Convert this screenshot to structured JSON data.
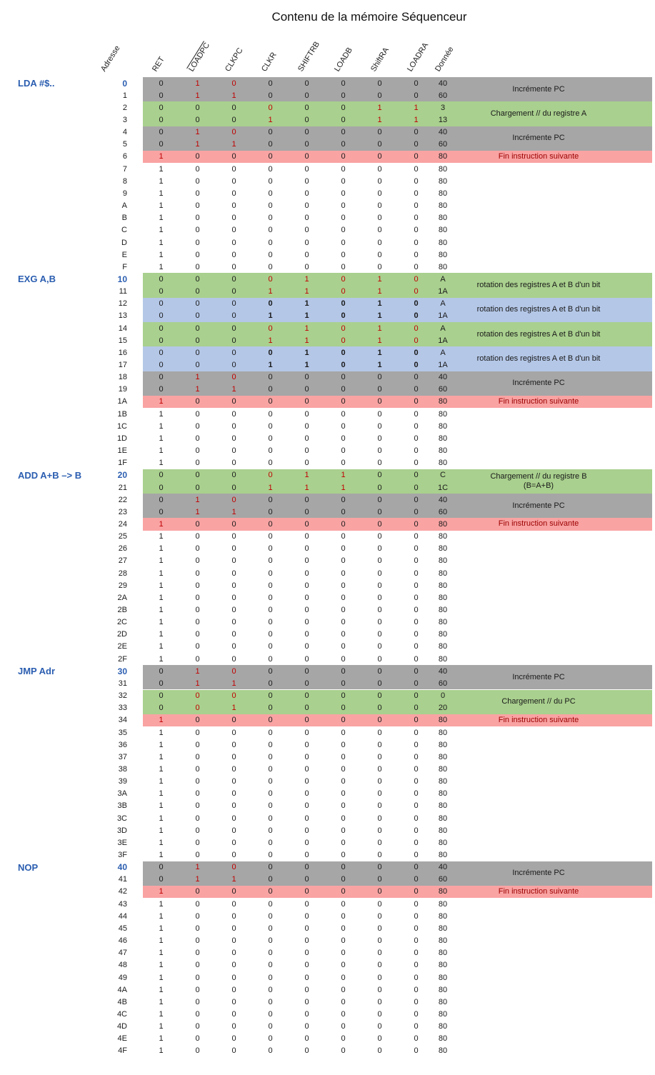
{
  "title": "Contenu de la mémoire Séquenceur",
  "colors": {
    "gray": "#a6a6a6",
    "green": "#a9d08e",
    "blue": "#b4c7e7",
    "pink": "#f9a3a3",
    "red_digit": "#c00000",
    "red_annotation": "#9c0000",
    "section_blue": "#2a5db0"
  },
  "columns": [
    {
      "label": "Adresse",
      "overline": false
    },
    {
      "label": "RET",
      "overline": false
    },
    {
      "label": "LOADPC",
      "overline": true
    },
    {
      "label": "CLKPC",
      "overline": false
    },
    {
      "label": "CLKR",
      "overline": false
    },
    {
      "label": "SHIFTRB",
      "overline": false
    },
    {
      "label": "LOADB",
      "overline": false
    },
    {
      "label": "ShiftRA",
      "overline": false
    },
    {
      "label": "LOADRA",
      "overline": false
    },
    {
      "label": "Donnée",
      "overline": false
    }
  ],
  "sections": [
    {
      "label": "LDA #$..",
      "start_addr": "0"
    },
    {
      "label": "EXG A,B",
      "start_addr": "10"
    },
    {
      "label": "ADD A+B –> B",
      "start_addr": "20"
    },
    {
      "label": "JMP Adr",
      "start_addr": "30"
    },
    {
      "label": "NOP",
      "start_addr": "40"
    }
  ],
  "annotations": [
    {
      "addr": "0",
      "span": 2,
      "lines": [
        "Incrémente PC"
      ],
      "red": false
    },
    {
      "addr": "2",
      "span": 2,
      "lines": [
        "Chargement // du registre A"
      ],
      "red": false
    },
    {
      "addr": "4",
      "span": 2,
      "lines": [
        "Incrémente PC"
      ],
      "red": false
    },
    {
      "addr": "6",
      "span": 1,
      "lines": [
        "Fin instruction suivante"
      ],
      "red": true
    },
    {
      "addr": "10",
      "span": 2,
      "lines": [
        "rotation des registres A et B d'un bit"
      ],
      "red": false
    },
    {
      "addr": "12",
      "span": 2,
      "lines": [
        "rotation des registres A et B d'un bit"
      ],
      "red": false
    },
    {
      "addr": "14",
      "span": 2,
      "lines": [
        "rotation des registres A et B d'un bit"
      ],
      "red": false
    },
    {
      "addr": "16",
      "span": 2,
      "lines": [
        "rotation des registres A et B d'un bit"
      ],
      "red": false
    },
    {
      "addr": "18",
      "span": 2,
      "lines": [
        "Incrémente PC"
      ],
      "red": false
    },
    {
      "addr": "1A",
      "span": 1,
      "lines": [
        "Fin instruction suivante"
      ],
      "red": true
    },
    {
      "addr": "20",
      "span": 2,
      "lines": [
        "Chargement // du registre B",
        "(B=A+B)"
      ],
      "red": false
    },
    {
      "addr": "22",
      "span": 2,
      "lines": [
        "Incrémente PC"
      ],
      "red": false
    },
    {
      "addr": "24",
      "span": 1,
      "lines": [
        "Fin instruction suivante"
      ],
      "red": true
    },
    {
      "addr": "30",
      "span": 2,
      "lines": [
        "Incrémente PC"
      ],
      "red": false
    },
    {
      "addr": "32",
      "span": 2,
      "lines": [
        "Chargement // du PC"
      ],
      "red": false
    },
    {
      "addr": "34",
      "span": 1,
      "lines": [
        "Fin instruction suivante"
      ],
      "red": true
    },
    {
      "addr": "40",
      "span": 2,
      "lines": [
        "Incrémente PC"
      ],
      "red": false
    },
    {
      "addr": "42",
      "span": 1,
      "lines": [
        "Fin instruction suivante"
      ],
      "red": true
    }
  ],
  "rows": [
    {
      "addr": "0",
      "section_start": true,
      "bg": "gray",
      "bits": "01000000",
      "red_bits": [
        1,
        2
      ],
      "donnee": "40"
    },
    {
      "addr": "1",
      "bg": "gray",
      "bits": "01100000",
      "red_bits": [
        1,
        2
      ],
      "donnee": "60"
    },
    {
      "addr": "2",
      "bg": "green",
      "bits": "00000011",
      "red_bits": [
        3,
        6,
        7
      ],
      "donnee": "3"
    },
    {
      "addr": "3",
      "bg": "green",
      "bits": "00010011",
      "red_bits": [
        3,
        6,
        7
      ],
      "donnee": "13"
    },
    {
      "addr": "4",
      "bg": "gray",
      "bits": "01000000",
      "red_bits": [
        1,
        2
      ],
      "donnee": "40"
    },
    {
      "addr": "5",
      "bg": "gray",
      "bits": "01100000",
      "red_bits": [
        1,
        2
      ],
      "donnee": "60"
    },
    {
      "addr": "6",
      "bg": "pink",
      "bits": "10000000",
      "red_bits": [
        0
      ],
      "donnee": "80"
    },
    {
      "addr": "7",
      "bg": "none",
      "bits": "10000000",
      "donnee": "80"
    },
    {
      "addr": "8",
      "bg": "none",
      "bits": "10000000",
      "donnee": "80"
    },
    {
      "addr": "9",
      "bg": "none",
      "bits": "10000000",
      "donnee": "80"
    },
    {
      "addr": "A",
      "bg": "none",
      "bits": "10000000",
      "donnee": "80"
    },
    {
      "addr": "B",
      "bg": "none",
      "bits": "10000000",
      "donnee": "80"
    },
    {
      "addr": "C",
      "bg": "none",
      "bits": "10000000",
      "donnee": "80"
    },
    {
      "addr": "D",
      "bg": "none",
      "bits": "10000000",
      "donnee": "80"
    },
    {
      "addr": "E",
      "bg": "none",
      "bits": "10000000",
      "donnee": "80"
    },
    {
      "addr": "F",
      "bg": "none",
      "bits": "10000000",
      "donnee": "80"
    },
    {
      "addr": "10",
      "section_start": true,
      "bg": "green",
      "bits": "00001010",
      "red_bits": [
        3,
        4,
        5,
        6,
        7
      ],
      "donnee": "A"
    },
    {
      "addr": "11",
      "bg": "green",
      "bits": "00011010",
      "red_bits": [
        3,
        4,
        5,
        6,
        7
      ],
      "donnee": "1A"
    },
    {
      "addr": "12",
      "bg": "blue",
      "bits": "00001010",
      "bold_bits": [
        3,
        4,
        5,
        6,
        7
      ],
      "donnee": "A"
    },
    {
      "addr": "13",
      "bg": "blue",
      "bits": "00011010",
      "bold_bits": [
        3,
        4,
        5,
        6,
        7
      ],
      "donnee": "1A"
    },
    {
      "addr": "14",
      "bg": "green",
      "bits": "00001010",
      "red_bits": [
        3,
        4,
        5,
        6,
        7
      ],
      "donnee": "A"
    },
    {
      "addr": "15",
      "bg": "green",
      "bits": "00011010",
      "red_bits": [
        3,
        4,
        5,
        6,
        7
      ],
      "donnee": "1A"
    },
    {
      "addr": "16",
      "bg": "blue",
      "bits": "00001010",
      "bold_bits": [
        3,
        4,
        5,
        6,
        7
      ],
      "donnee": "A"
    },
    {
      "addr": "17",
      "bg": "blue",
      "bits": "00011010",
      "bold_bits": [
        3,
        4,
        5,
        6,
        7
      ],
      "donnee": "1A"
    },
    {
      "addr": "18",
      "bg": "gray",
      "bits": "01000000",
      "red_bits": [
        1,
        2
      ],
      "donnee": "40"
    },
    {
      "addr": "19",
      "bg": "gray",
      "bits": "01100000",
      "red_bits": [
        1,
        2
      ],
      "donnee": "60"
    },
    {
      "addr": "1A",
      "bg": "pink",
      "bits": "10000000",
      "red_bits": [
        0
      ],
      "donnee": "80"
    },
    {
      "addr": "1B",
      "bg": "none",
      "bits": "10000000",
      "donnee": "80"
    },
    {
      "addr": "1C",
      "bg": "none",
      "bits": "10000000",
      "donnee": "80"
    },
    {
      "addr": "1D",
      "bg": "none",
      "bits": "10000000",
      "donnee": "80"
    },
    {
      "addr": "1E",
      "bg": "none",
      "bits": "10000000",
      "donnee": "80"
    },
    {
      "addr": "1F",
      "bg": "none",
      "bits": "10000000",
      "donnee": "80"
    },
    {
      "addr": "20",
      "section_start": true,
      "bg": "green",
      "bits": "00001100",
      "red_bits": [
        3,
        4,
        5
      ],
      "donnee": "C"
    },
    {
      "addr": "21",
      "bg": "green",
      "bits": "00011100",
      "red_bits": [
        3,
        4,
        5
      ],
      "donnee": "1C"
    },
    {
      "addr": "22",
      "bg": "gray",
      "bits": "01000000",
      "red_bits": [
        1,
        2
      ],
      "donnee": "40"
    },
    {
      "addr": "23",
      "bg": "gray",
      "bits": "01100000",
      "red_bits": [
        1,
        2
      ],
      "donnee": "60"
    },
    {
      "addr": "24",
      "bg": "pink",
      "bits": "10000000",
      "red_bits": [
        0
      ],
      "donnee": "80"
    },
    {
      "addr": "25",
      "bg": "none",
      "bits": "10000000",
      "donnee": "80"
    },
    {
      "addr": "26",
      "bg": "none",
      "bits": "10000000",
      "donnee": "80"
    },
    {
      "addr": "27",
      "bg": "none",
      "bits": "10000000",
      "donnee": "80"
    },
    {
      "addr": "28",
      "bg": "none",
      "bits": "10000000",
      "donnee": "80"
    },
    {
      "addr": "29",
      "bg": "none",
      "bits": "10000000",
      "donnee": "80"
    },
    {
      "addr": "2A",
      "bg": "none",
      "bits": "10000000",
      "donnee": "80"
    },
    {
      "addr": "2B",
      "bg": "none",
      "bits": "10000000",
      "donnee": "80"
    },
    {
      "addr": "2C",
      "bg": "none",
      "bits": "10000000",
      "donnee": "80"
    },
    {
      "addr": "2D",
      "bg": "none",
      "bits": "10000000",
      "donnee": "80"
    },
    {
      "addr": "2E",
      "bg": "none",
      "bits": "10000000",
      "donnee": "80"
    },
    {
      "addr": "2F",
      "bg": "none",
      "bits": "10000000",
      "donnee": "80"
    },
    {
      "addr": "30",
      "section_start": true,
      "bg": "gray",
      "bits": "01000000",
      "red_bits": [
        1,
        2
      ],
      "donnee": "40"
    },
    {
      "addr": "31",
      "bg": "gray",
      "bits": "01100000",
      "red_bits": [
        1,
        2
      ],
      "donnee": "60"
    },
    {
      "addr": "32",
      "bg": "green",
      "bits": "00000000",
      "red_bits": [
        1,
        2
      ],
      "donnee": "0"
    },
    {
      "addr": "33",
      "bg": "green",
      "bits": "00100000",
      "red_bits": [
        1,
        2
      ],
      "donnee": "20"
    },
    {
      "addr": "34",
      "bg": "pink",
      "bits": "10000000",
      "red_bits": [
        0
      ],
      "donnee": "80"
    },
    {
      "addr": "35",
      "bg": "none",
      "bits": "10000000",
      "donnee": "80"
    },
    {
      "addr": "36",
      "bg": "none",
      "bits": "10000000",
      "donnee": "80"
    },
    {
      "addr": "37",
      "bg": "none",
      "bits": "10000000",
      "donnee": "80"
    },
    {
      "addr": "38",
      "bg": "none",
      "bits": "10000000",
      "donnee": "80"
    },
    {
      "addr": "39",
      "bg": "none",
      "bits": "10000000",
      "donnee": "80"
    },
    {
      "addr": "3A",
      "bg": "none",
      "bits": "10000000",
      "donnee": "80"
    },
    {
      "addr": "3B",
      "bg": "none",
      "bits": "10000000",
      "donnee": "80"
    },
    {
      "addr": "3C",
      "bg": "none",
      "bits": "10000000",
      "donnee": "80"
    },
    {
      "addr": "3D",
      "bg": "none",
      "bits": "10000000",
      "donnee": "80"
    },
    {
      "addr": "3E",
      "bg": "none",
      "bits": "10000000",
      "donnee": "80"
    },
    {
      "addr": "3F",
      "bg": "none",
      "bits": "10000000",
      "donnee": "80"
    },
    {
      "addr": "40",
      "section_start": true,
      "bg": "gray",
      "bits": "01000000",
      "red_bits": [
        1,
        2
      ],
      "donnee": "40"
    },
    {
      "addr": "41",
      "bg": "gray",
      "bits": "01100000",
      "red_bits": [
        1,
        2
      ],
      "donnee": "60"
    },
    {
      "addr": "42",
      "bg": "pink",
      "bits": "10000000",
      "red_bits": [
        0
      ],
      "donnee": "80"
    },
    {
      "addr": "43",
      "bg": "none",
      "bits": "10000000",
      "donnee": "80"
    },
    {
      "addr": "44",
      "bg": "none",
      "bits": "10000000",
      "donnee": "80"
    },
    {
      "addr": "45",
      "bg": "none",
      "bits": "10000000",
      "donnee": "80"
    },
    {
      "addr": "46",
      "bg": "none",
      "bits": "10000000",
      "donnee": "80"
    },
    {
      "addr": "47",
      "bg": "none",
      "bits": "10000000",
      "donnee": "80"
    },
    {
      "addr": "48",
      "bg": "none",
      "bits": "10000000",
      "donnee": "80"
    },
    {
      "addr": "49",
      "bg": "none",
      "bits": "10000000",
      "donnee": "80"
    },
    {
      "addr": "4A",
      "bg": "none",
      "bits": "10000000",
      "donnee": "80"
    },
    {
      "addr": "4B",
      "bg": "none",
      "bits": "10000000",
      "donnee": "80"
    },
    {
      "addr": "4C",
      "bg": "none",
      "bits": "10000000",
      "donnee": "80"
    },
    {
      "addr": "4D",
      "bg": "none",
      "bits": "10000000",
      "donnee": "80"
    },
    {
      "addr": "4E",
      "bg": "none",
      "bits": "10000000",
      "donnee": "80"
    },
    {
      "addr": "4F",
      "bg": "none",
      "bits": "10000000",
      "donnee": "80"
    }
  ]
}
